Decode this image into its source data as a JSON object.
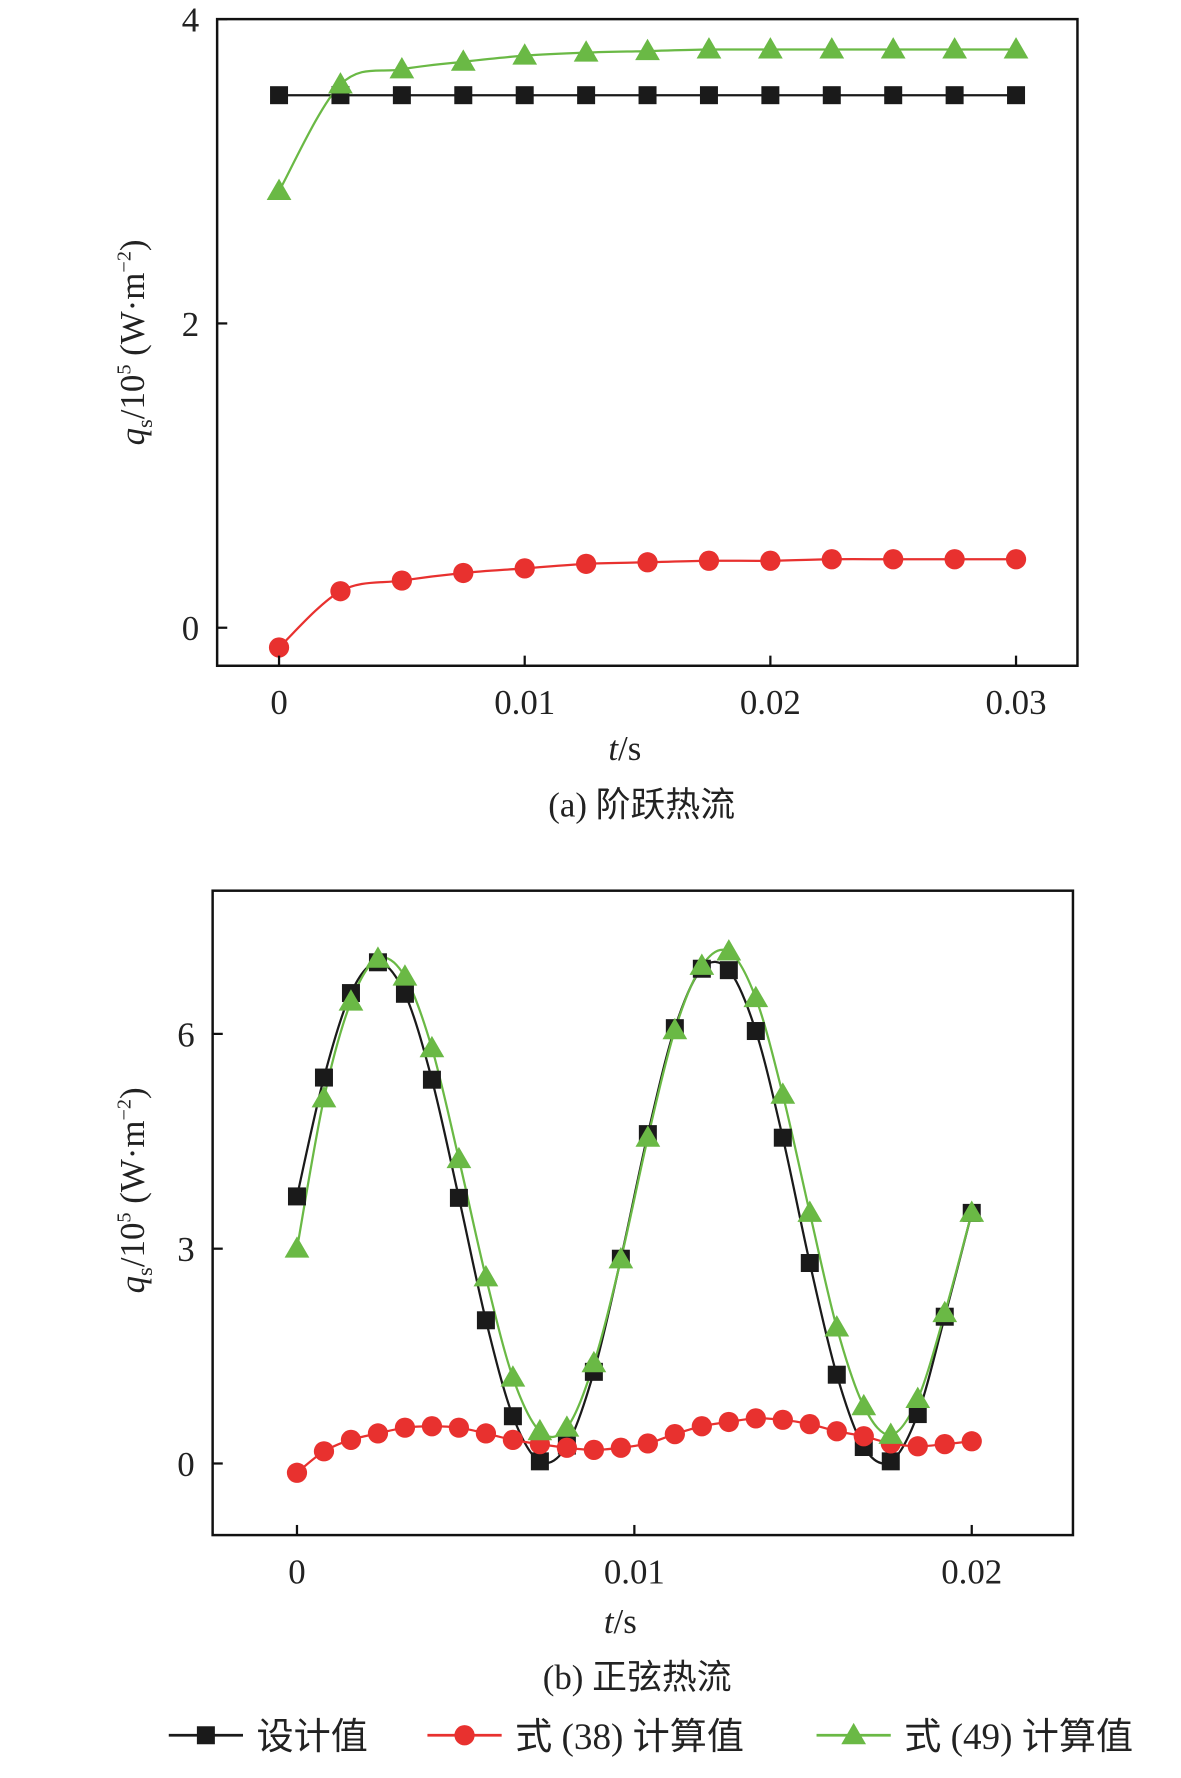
{
  "chart_data": [
    {
      "type": "line",
      "panel": "a",
      "caption": "(a) 阶跃热流",
      "xlabel": "t/s",
      "ylabel": "q_s/10^5 (W·m^-2)",
      "ylabel_parts": {
        "q": "q",
        "sub": "s",
        "mid": "/10",
        "sup5": "5",
        "unit": " (W·m",
        "supneg": "−2",
        "close": ")"
      },
      "xlim": [
        -0.00252,
        0.0325
      ],
      "ylim": [
        -0.25,
        4
      ],
      "xticks": [
        0,
        0.01,
        0.02,
        0.03
      ],
      "xtick_labels": [
        "0",
        "0.01",
        "0.02",
        "0.03"
      ],
      "yticks": [
        0,
        2,
        4
      ],
      "ytick_labels": [
        "0",
        "2",
        "4"
      ],
      "x": [
        0,
        0.0025,
        0.005,
        0.0075,
        0.01,
        0.0125,
        0.015,
        0.0175,
        0.02,
        0.0225,
        0.025,
        0.0275,
        0.03
      ],
      "series": [
        {
          "name": "设计值",
          "marker": "square",
          "color": "#1a1a1a",
          "values": [
            3.5,
            3.5,
            3.5,
            3.5,
            3.5,
            3.5,
            3.5,
            3.5,
            3.5,
            3.5,
            3.5,
            3.5,
            3.5
          ]
        },
        {
          "name": "式 (38) 计算值",
          "marker": "circle",
          "color": "#e8312f",
          "values": [
            -0.13,
            0.24,
            0.31,
            0.36,
            0.39,
            0.42,
            0.43,
            0.44,
            0.44,
            0.45,
            0.45,
            0.45,
            0.45
          ]
        },
        {
          "name": "式 (49) 计算值",
          "marker": "triangle",
          "color": "#6ab945",
          "values": [
            2.87,
            3.57,
            3.67,
            3.72,
            3.76,
            3.78,
            3.79,
            3.8,
            3.8,
            3.8,
            3.8,
            3.8,
            3.8
          ]
        }
      ]
    },
    {
      "type": "line",
      "panel": "b",
      "caption": "(b) 正弦热流",
      "xlabel": "t/s",
      "ylabel": "q_s/10^5 (W·m^-2)",
      "ylabel_parts": {
        "q": "q",
        "sub": "s",
        "mid": "/10",
        "sup5": "5",
        "unit": " (W·m",
        "supneg": "−2",
        "close": ")"
      },
      "xlim": [
        -0.0025,
        0.023
      ],
      "ylim": [
        -1,
        8
      ],
      "xticks": [
        0,
        0.01,
        0.02
      ],
      "xtick_labels": [
        "0",
        "0.01",
        "0.02"
      ],
      "yticks": [
        0,
        3,
        6
      ],
      "ytick_labels": [
        "0",
        "3",
        "6"
      ],
      "x": [
        0,
        0.0008,
        0.0016,
        0.0024,
        0.0032,
        0.004,
        0.0048,
        0.0056,
        0.0064,
        0.0072,
        0.008,
        0.0088,
        0.0096,
        0.0104,
        0.0112,
        0.012,
        0.0128,
        0.0136,
        0.0144,
        0.0152,
        0.016,
        0.0168,
        0.0176,
        0.0184,
        0.0192,
        0.02
      ],
      "series": [
        {
          "name": "设计值",
          "marker": "square",
          "color": "#1a1a1a",
          "values": [
            3.73,
            5.39,
            6.57,
            7.0,
            6.56,
            5.36,
            3.71,
            2.0,
            0.66,
            0.03,
            0.25,
            1.28,
            2.86,
            4.6,
            6.08,
            6.91,
            6.89,
            6.04,
            4.55,
            2.8,
            1.24,
            0.23,
            0.03,
            0.69,
            2.05,
            3.5
          ]
        },
        {
          "name": "式 (38) 计算值",
          "marker": "circle",
          "color": "#e8312f",
          "values": [
            -0.13,
            0.17,
            0.33,
            0.42,
            0.5,
            0.52,
            0.5,
            0.42,
            0.33,
            0.27,
            0.22,
            0.19,
            0.22,
            0.28,
            0.41,
            0.52,
            0.58,
            0.63,
            0.61,
            0.55,
            0.45,
            0.38,
            0.28,
            0.24,
            0.27,
            0.31
          ]
        },
        {
          "name": "式 (49) 计算值",
          "marker": "triangle",
          "color": "#6ab945",
          "values": [
            3.0,
            5.1,
            6.45,
            7.05,
            6.8,
            5.8,
            4.25,
            2.6,
            1.2,
            0.45,
            0.5,
            1.4,
            2.85,
            4.55,
            6.05,
            6.95,
            7.15,
            6.5,
            5.15,
            3.5,
            1.9,
            0.8,
            0.4,
            0.9,
            2.1,
            3.5
          ]
        }
      ]
    }
  ],
  "legend": {
    "placement": "bottom",
    "items": [
      {
        "label": "设计值",
        "marker": "square",
        "color": "#1a1a1a"
      },
      {
        "label": "式 (38) 计算值",
        "marker": "circle",
        "color": "#e8312f"
      },
      {
        "label": "式 (49) 计算值",
        "marker": "triangle",
        "color": "#6ab945"
      }
    ]
  }
}
